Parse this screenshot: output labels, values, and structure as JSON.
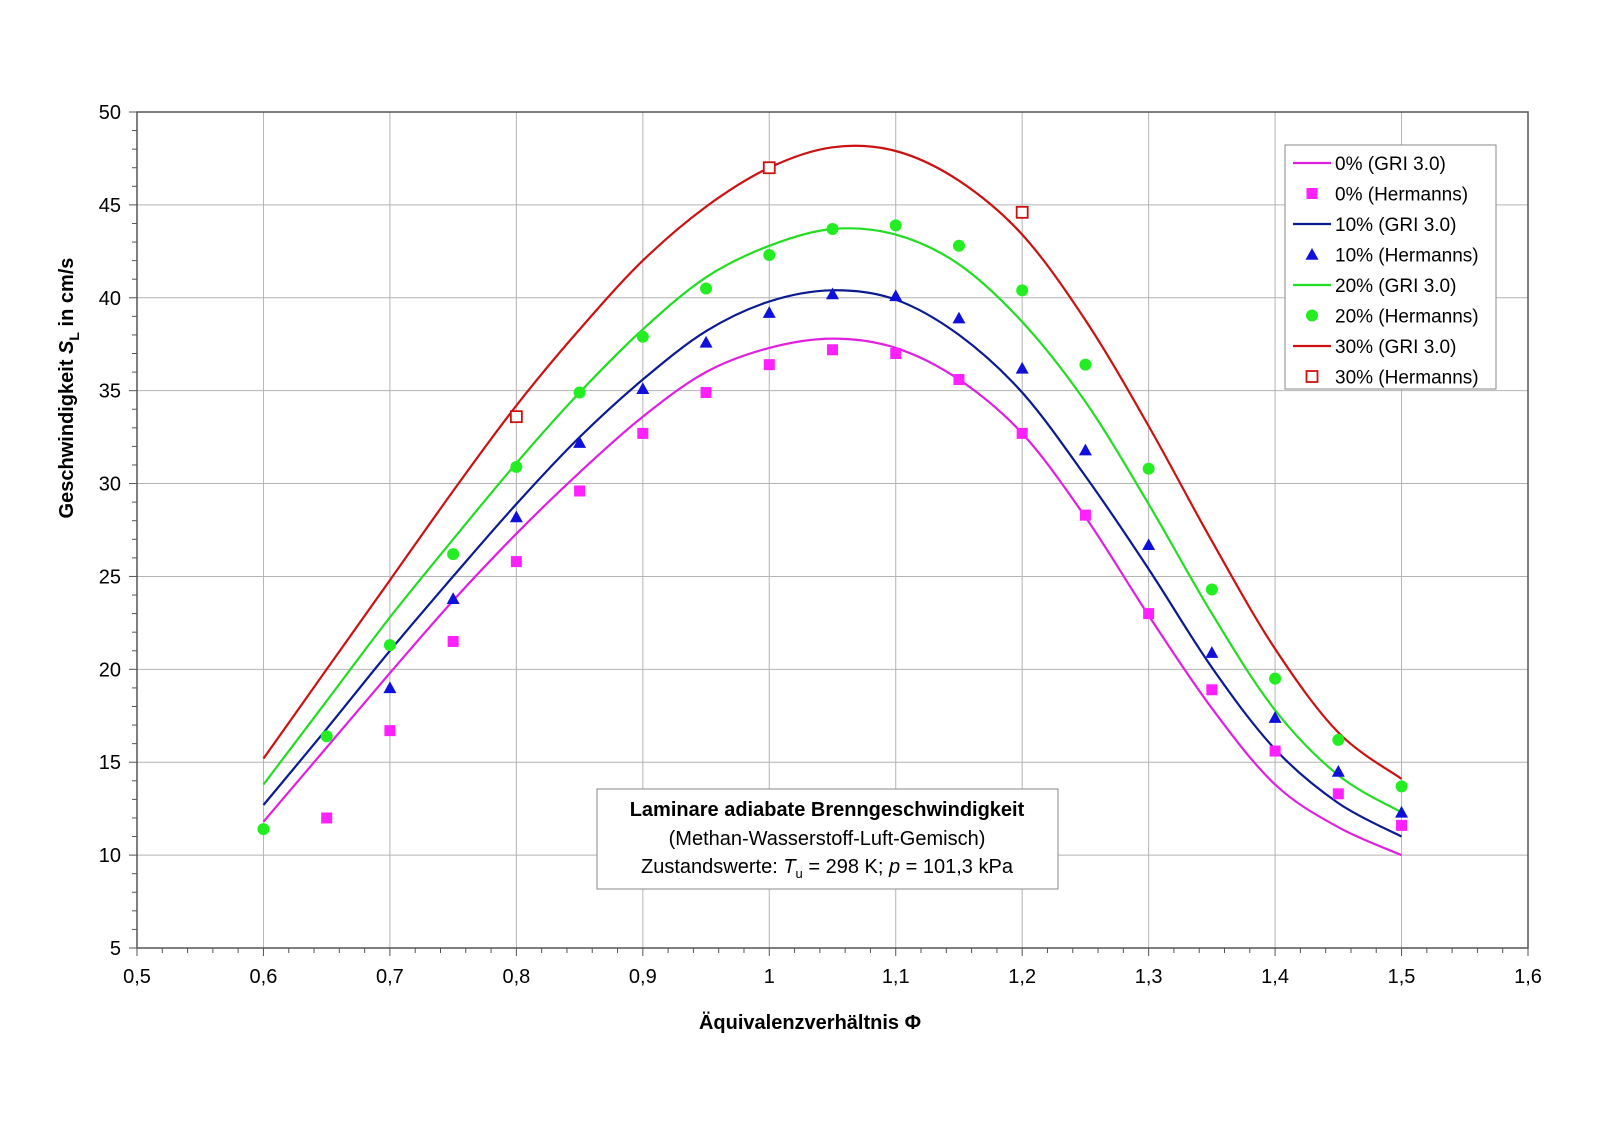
{
  "chart_data": {
    "type": "line",
    "title": "",
    "xlabel": "Äquivalenzverhältnis Φ",
    "ylabel": {
      "before": "Geschwindigkeit ",
      "symbol": "S",
      "sub": "L",
      "after": " in cm/s"
    },
    "xlim": [
      0.5,
      1.6
    ],
    "ylim": [
      5,
      50
    ],
    "x_ticks": [
      0.5,
      0.6,
      0.7,
      0.8,
      0.9,
      1.0,
      1.1,
      1.2,
      1.3,
      1.4,
      1.5,
      1.6
    ],
    "x_tick_labels": [
      "0,5",
      "0,6",
      "0,7",
      "0,8",
      "0,9",
      "1",
      "1,1",
      "1,2",
      "1,3",
      "1,4",
      "1,5",
      "1,6"
    ],
    "y_ticks": [
      5,
      10,
      15,
      20,
      25,
      30,
      35,
      40,
      45,
      50
    ],
    "y_tick_labels": [
      "5",
      "10",
      "15",
      "20",
      "25",
      "30",
      "35",
      "40",
      "45",
      "50"
    ],
    "grid": true,
    "legend_position": "top-right",
    "annotation": {
      "title": "Laminare adiabate Brenngeschwindigkeit",
      "line2": "(Methan-Wasserstoff-Luft-Gemisch)",
      "line3_prefix": "Zustandswerte: ",
      "line3_tsym": "T",
      "line3_tsub": "u",
      "line3_mid": " = 298 K; ",
      "line3_psym": "p",
      "line3_suffix": " = 101,3 kPa"
    },
    "series": [
      {
        "name": "0% (GRI 3.0)",
        "kind": "line",
        "color": "#e020e0",
        "x": [
          0.6,
          0.65,
          0.7,
          0.75,
          0.8,
          0.85,
          0.9,
          0.95,
          1.0,
          1.05,
          1.1,
          1.15,
          1.2,
          1.25,
          1.3,
          1.35,
          1.4,
          1.45,
          1.5
        ],
        "y": [
          11.8,
          15.8,
          19.8,
          23.7,
          27.3,
          30.6,
          33.6,
          36.0,
          37.3,
          37.8,
          37.3,
          35.6,
          32.7,
          28.2,
          22.9,
          17.9,
          13.8,
          11.5,
          10.0
        ]
      },
      {
        "name": "0% (Hermanns)",
        "kind": "marker",
        "marker": "square",
        "color": "#ff20ff",
        "x": [
          0.65,
          0.7,
          0.75,
          0.8,
          0.85,
          0.9,
          0.95,
          1.0,
          1.05,
          1.1,
          1.15,
          1.2,
          1.25,
          1.3,
          1.35,
          1.4,
          1.45,
          1.5
        ],
        "y": [
          12.0,
          16.7,
          21.5,
          25.8,
          29.6,
          32.7,
          34.9,
          36.4,
          37.2,
          37.0,
          35.6,
          32.7,
          28.3,
          23.0,
          18.9,
          15.6,
          13.3,
          11.6
        ]
      },
      {
        "name": "10% (GRI 3.0)",
        "kind": "line",
        "color": "#0a1a90",
        "x": [
          0.6,
          0.65,
          0.7,
          0.75,
          0.8,
          0.85,
          0.9,
          0.95,
          1.0,
          1.05,
          1.1,
          1.15,
          1.2,
          1.25,
          1.3,
          1.35,
          1.4,
          1.45,
          1.5
        ],
        "y": [
          12.7,
          16.8,
          21.0,
          25.0,
          28.9,
          32.5,
          35.6,
          38.2,
          39.8,
          40.4,
          39.9,
          38.0,
          34.9,
          30.4,
          25.4,
          20.1,
          15.7,
          12.8,
          11.0
        ]
      },
      {
        "name": "10% (Hermanns)",
        "kind": "marker",
        "marker": "triangle",
        "color": "#1010dd",
        "x": [
          0.7,
          0.75,
          0.8,
          0.85,
          0.9,
          0.95,
          1.0,
          1.05,
          1.1,
          1.15,
          1.2,
          1.25,
          1.3,
          1.35,
          1.4,
          1.45,
          1.5
        ],
        "y": [
          19.0,
          23.8,
          28.2,
          32.2,
          35.1,
          37.6,
          39.2,
          40.2,
          40.1,
          38.9,
          36.2,
          31.8,
          26.7,
          20.9,
          17.4,
          14.5,
          12.3
        ]
      },
      {
        "name": "20% (GRI 3.0)",
        "kind": "line",
        "color": "#22dd22",
        "x": [
          0.6,
          0.65,
          0.7,
          0.75,
          0.8,
          0.85,
          0.9,
          0.95,
          1.0,
          1.05,
          1.1,
          1.15,
          1.2,
          1.25,
          1.3,
          1.35,
          1.4,
          1.45,
          1.5
        ],
        "y": [
          13.8,
          18.3,
          22.8,
          27.0,
          31.1,
          34.9,
          38.3,
          41.1,
          42.8,
          43.7,
          43.4,
          41.8,
          38.7,
          34.4,
          28.9,
          23.0,
          17.8,
          14.3,
          12.3
        ]
      },
      {
        "name": "20% (Hermanns)",
        "kind": "marker",
        "marker": "circle",
        "color": "#22ee22",
        "x": [
          0.6,
          0.65,
          0.7,
          0.75,
          0.8,
          0.85,
          0.9,
          0.95,
          1.0,
          1.05,
          1.1,
          1.15,
          1.2,
          1.25,
          1.3,
          1.35,
          1.4,
          1.45,
          1.5
        ],
        "y": [
          11.4,
          16.4,
          21.3,
          26.2,
          30.9,
          34.9,
          37.9,
          40.5,
          42.3,
          43.7,
          43.9,
          42.8,
          40.4,
          36.4,
          30.8,
          24.3,
          19.5,
          16.2,
          13.7
        ]
      },
      {
        "name": "30% (GRI 3.0)",
        "kind": "line",
        "color": "#cc1111",
        "x": [
          0.6,
          0.65,
          0.7,
          0.75,
          0.8,
          0.85,
          0.9,
          0.95,
          1.0,
          1.05,
          1.1,
          1.15,
          1.2,
          1.25,
          1.3,
          1.35,
          1.4,
          1.45,
          1.5
        ],
        "y": [
          15.2,
          20.0,
          24.8,
          29.6,
          34.2,
          38.3,
          42.0,
          44.9,
          47.0,
          48.1,
          47.9,
          46.3,
          43.4,
          38.8,
          33.1,
          26.9,
          21.1,
          16.6,
          14.1
        ]
      },
      {
        "name": "30% (Hermanns)",
        "kind": "marker",
        "marker": "open-square",
        "color": "#cc1111",
        "x": [
          0.8,
          1.0,
          1.2
        ],
        "y": [
          33.6,
          47.0,
          44.6
        ]
      }
    ]
  }
}
